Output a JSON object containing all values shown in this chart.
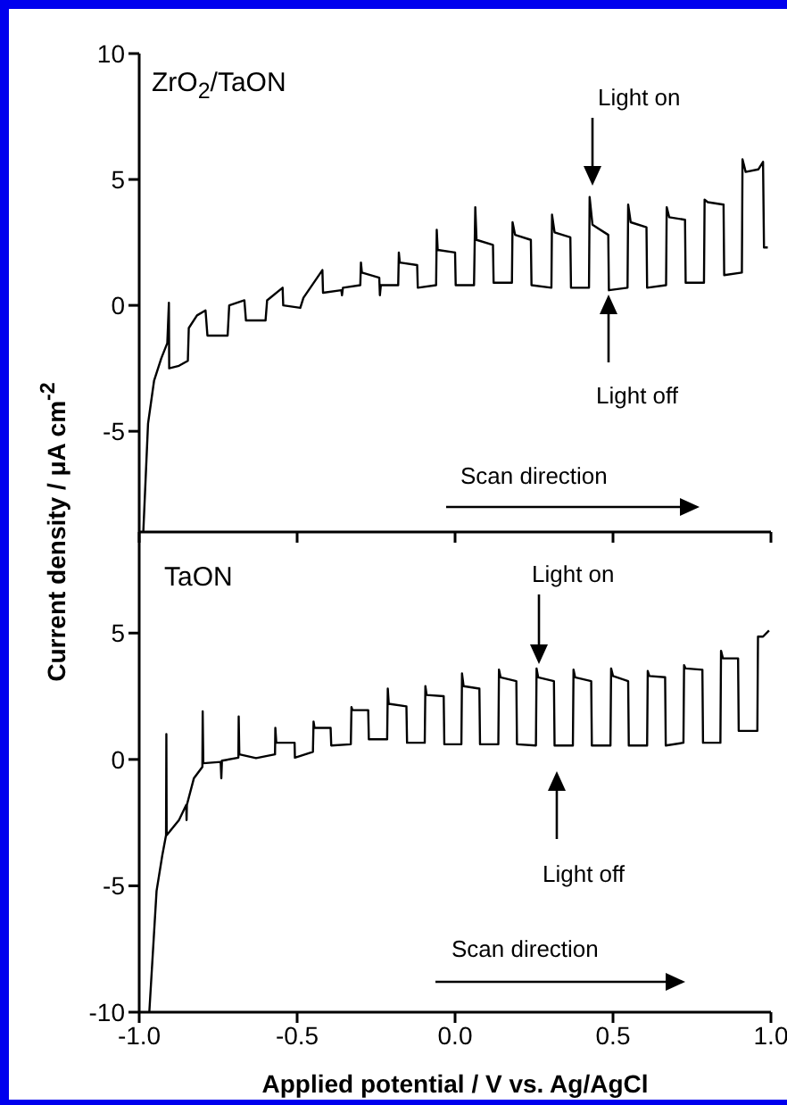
{
  "chart_data": [
    {
      "type": "line",
      "ylabel": "Current density / μA cm$^{-2}$",
      "annotations": [
        "ZrO$_{2}$/TaON",
        "Light on",
        "Light off",
        "Scan direction"
      ],
      "xlim": [
        -1,
        1
      ],
      "xticks": [
        -1,
        -0.5,
        0,
        0.5,
        1
      ],
      "ylim": [
        -9,
        10
      ],
      "yticks": [
        -5,
        0,
        5,
        10
      ],
      "tick_labels": "y",
      "series": [
        {
          "color": "#000000",
          "x": [
            -0.987,
            -0.972,
            -0.953,
            -0.93,
            -0.911,
            -0.906,
            -0.905,
            -0.874,
            -0.846,
            -0.843,
            -0.817,
            -0.79,
            -0.784,
            -0.72,
            -0.715,
            -0.667,
            -0.662,
            -0.6,
            -0.595,
            -0.546,
            -0.544,
            -0.49,
            -0.48,
            -0.42,
            -0.418,
            -0.36,
            -0.358,
            -0.355,
            -0.3,
            -0.298,
            -0.295,
            -0.24,
            -0.238,
            -0.235,
            -0.18,
            -0.178,
            -0.175,
            -0.12,
            -0.118,
            -0.06,
            -0.058,
            -0.055,
            0.0,
            0.002,
            0.06,
            0.064,
            0.068,
            0.12,
            0.122,
            0.18,
            0.182,
            0.19,
            0.24,
            0.242,
            0.305,
            0.307,
            0.315,
            0.365,
            0.367,
            0.424,
            0.426,
            0.435,
            0.485,
            0.487,
            0.546,
            0.548,
            0.556,
            0.606,
            0.608,
            0.668,
            0.67,
            0.678,
            0.728,
            0.73,
            0.788,
            0.79,
            0.8,
            0.85,
            0.852,
            0.908,
            0.91,
            0.92,
            0.96,
            0.975,
            0.978,
            0.99
          ],
          "values": [
            -9,
            -4.7,
            -3.0,
            -2.1,
            -1.5,
            0.1,
            -2.5,
            -2.4,
            -2.2,
            -0.9,
            -0.4,
            -0.2,
            -1.2,
            -1.2,
            0,
            0.2,
            -0.6,
            -0.6,
            0.2,
            0.7,
            0,
            -0.1,
            0.3,
            1.4,
            0.5,
            0.6,
            0.4,
            0.7,
            0.8,
            1.7,
            1.3,
            1.1,
            0.4,
            0.8,
            0.8,
            2.1,
            1.7,
            1.6,
            0.7,
            0.8,
            3.0,
            2.2,
            2.1,
            0.8,
            0.8,
            3.9,
            2.6,
            2.4,
            0.9,
            0.9,
            3.3,
            2.8,
            2.6,
            0.8,
            0.7,
            3.6,
            2.9,
            2.7,
            0.7,
            0.7,
            4.3,
            3.2,
            2.8,
            0.6,
            0.7,
            4.0,
            3.3,
            3.1,
            0.7,
            0.8,
            3.9,
            3.5,
            3.4,
            0.9,
            0.9,
            4.2,
            4.1,
            4.0,
            1.2,
            1.3,
            5.8,
            5.3,
            5.4,
            5.7,
            2.3,
            2.3
          ]
        }
      ]
    },
    {
      "type": "line",
      "xlabel": "Applied potential / V vs. Ag/AgCl",
      "annotations": [
        "TaON",
        "Light on",
        "Light off",
        "Scan direction"
      ],
      "xlim": [
        -1,
        1
      ],
      "xticks": [
        {
          "value": -1,
          "label": "-1.0"
        },
        {
          "value": -0.5,
          "label": "-0.5"
        },
        {
          "value": 0,
          "label": "0.0"
        },
        {
          "value": 0.5,
          "label": "0.5"
        },
        {
          "value": 1,
          "label": "1.0"
        }
      ],
      "ylim": [
        -10,
        9
      ],
      "yticks": [
        -10,
        -5,
        0,
        5
      ],
      "series": [
        {
          "color": "#000000",
          "x": [
            -0.968,
            -0.945,
            -0.927,
            -0.915,
            -0.914,
            -0.913,
            -0.874,
            -0.851,
            -0.85,
            -0.849,
            -0.827,
            -0.8,
            -0.799,
            -0.797,
            -0.742,
            -0.74,
            -0.738,
            -0.686,
            -0.685,
            -0.683,
            -0.63,
            -0.57,
            -0.569,
            -0.566,
            -0.508,
            -0.507,
            -0.45,
            -0.448,
            -0.445,
            -0.394,
            -0.392,
            -0.33,
            -0.328,
            -0.325,
            -0.275,
            -0.273,
            -0.215,
            -0.213,
            -0.21,
            -0.154,
            -0.152,
            -0.096,
            -0.094,
            -0.09,
            -0.036,
            -0.034,
            0.02,
            0.022,
            0.027,
            0.077,
            0.079,
            0.137,
            0.139,
            0.144,
            0.194,
            0.196,
            0.256,
            0.258,
            0.263,
            0.313,
            0.315,
            0.373,
            0.375,
            0.38,
            0.431,
            0.433,
            0.492,
            0.494,
            0.5,
            0.548,
            0.55,
            0.608,
            0.61,
            0.615,
            0.665,
            0.667,
            0.723,
            0.725,
            0.73,
            0.783,
            0.785,
            0.84,
            0.842,
            0.848,
            0.896,
            0.898,
            0.957,
            0.959,
            0.975,
            0.994
          ],
          "values": [
            -10,
            -5.2,
            -3.8,
            -3.0,
            1.0,
            -3.0,
            -2.4,
            -1.8,
            -2.4,
            -1.8,
            -0.75,
            -0.3,
            1.9,
            -0.15,
            -0.1,
            -0.75,
            -0.05,
            0.07,
            1.7,
            0.2,
            0.05,
            0.2,
            1.25,
            0.66,
            0.66,
            0.07,
            0.3,
            1.5,
            1.25,
            1.25,
            0.55,
            0.6,
            2.07,
            1.95,
            1.95,
            0.8,
            0.8,
            2.8,
            2.2,
            2.1,
            0.66,
            0.66,
            2.9,
            2.55,
            2.5,
            0.6,
            0.6,
            3.4,
            2.9,
            2.8,
            0.6,
            0.6,
            3.55,
            3.25,
            3.1,
            0.6,
            0.55,
            3.6,
            3.25,
            3.1,
            0.55,
            0.55,
            3.55,
            3.25,
            3.1,
            0.55,
            0.55,
            3.6,
            3.3,
            3.1,
            0.55,
            0.55,
            3.5,
            3.3,
            3.25,
            0.55,
            0.66,
            3.73,
            3.6,
            3.55,
            0.66,
            0.66,
            4.3,
            4.0,
            4.0,
            1.13,
            1.13,
            4.86,
            4.86,
            5.1
          ]
        }
      ]
    }
  ]
}
